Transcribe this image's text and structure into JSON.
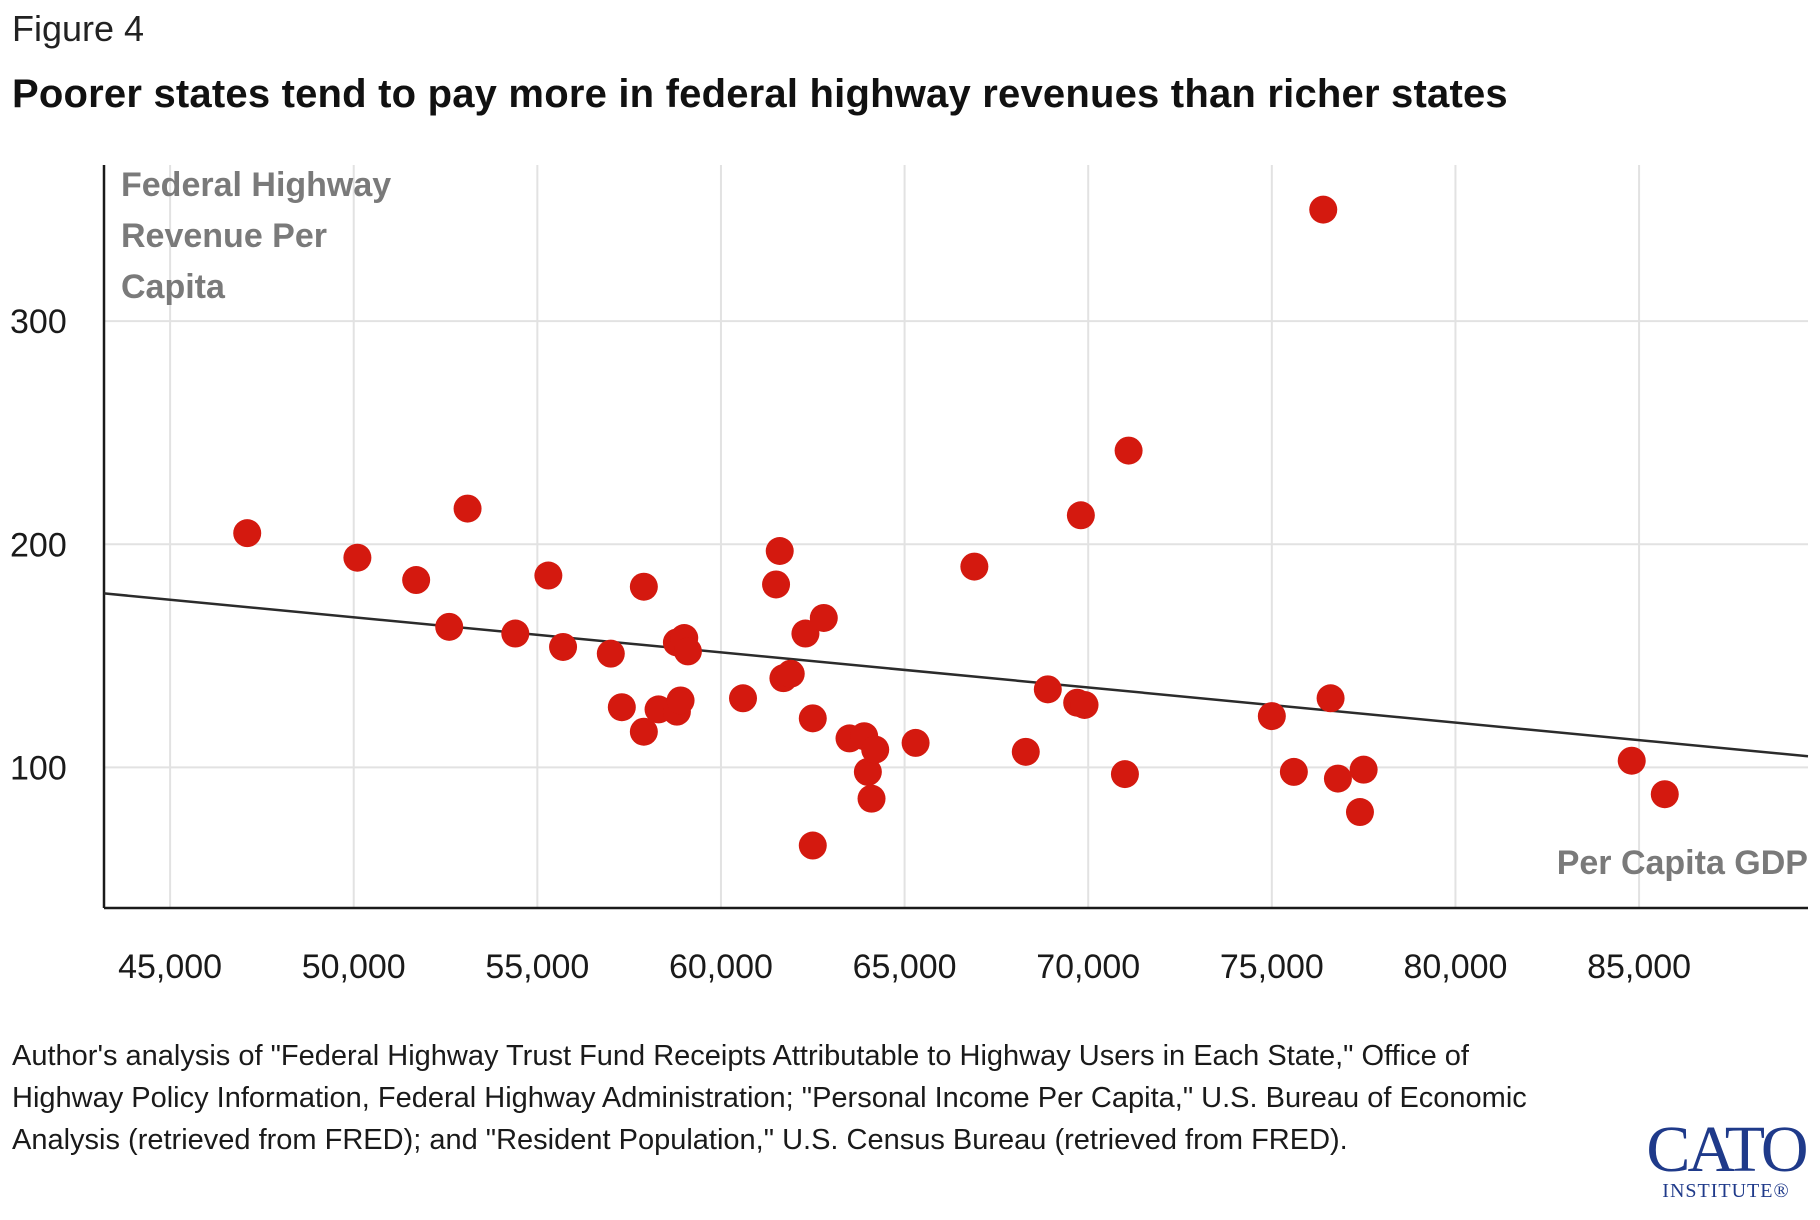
{
  "figure_label": "Figure 4",
  "title": "Poorer states tend to pay more in federal highway revenues than richer states",
  "source_note": "Author's analysis of \"Federal Highway Trust Fund Receipts Attributable to Highway Users in Each State,\" Office of Highway Policy Information, Federal Highway Administration; \"Personal Income Per Capita,\" U.S. Bureau of Economic Analysis (retrieved from FRED); and \"Resident Population,\" U.S. Census Bureau (retrieved from FRED).",
  "logo": {
    "main": "CATO",
    "sub": "INSTITUTE®"
  },
  "colors": {
    "point": "#d4190f",
    "trend": "#2b2b2b",
    "grid": "#e2e2e2",
    "axis": "#1a1a1a",
    "label": "#7a7a7a"
  },
  "chart_data": {
    "type": "scatter",
    "title": "Poorer states tend to pay more in federal highway revenues than richer states",
    "xlabel": "Per Capita GDP",
    "ylabel_lines": [
      "Federal Highway",
      "Revenue Per",
      "Capita"
    ],
    "xlim": [
      43200,
      89600
    ],
    "ylim": [
      37,
      370
    ],
    "xticks": [
      45000,
      50000,
      55000,
      60000,
      65000,
      70000,
      75000,
      80000,
      85000
    ],
    "xtick_labels": [
      "45,000",
      "50,000",
      "55,000",
      "60,000",
      "65,000",
      "70,000",
      "75,000",
      "80,000",
      "85,000"
    ],
    "yticks": [
      100,
      200,
      300
    ],
    "ytick_labels": [
      "100",
      "200",
      "300"
    ],
    "grid": true,
    "trendline": {
      "x": [
        43200,
        89600
      ],
      "y": [
        178,
        105
      ]
    },
    "points": [
      {
        "x": 47100,
        "y": 205
      },
      {
        "x": 50100,
        "y": 194
      },
      {
        "x": 51700,
        "y": 184
      },
      {
        "x": 52600,
        "y": 163
      },
      {
        "x": 53100,
        "y": 216
      },
      {
        "x": 54400,
        "y": 160
      },
      {
        "x": 55300,
        "y": 186
      },
      {
        "x": 55700,
        "y": 154
      },
      {
        "x": 57000,
        "y": 151
      },
      {
        "x": 57300,
        "y": 127
      },
      {
        "x": 57900,
        "y": 116
      },
      {
        "x": 57900,
        "y": 181
      },
      {
        "x": 58300,
        "y": 126
      },
      {
        "x": 58800,
        "y": 125
      },
      {
        "x": 58800,
        "y": 156
      },
      {
        "x": 58900,
        "y": 130
      },
      {
        "x": 59000,
        "y": 158
      },
      {
        "x": 59100,
        "y": 152
      },
      {
        "x": 60600,
        "y": 131
      },
      {
        "x": 61500,
        "y": 182
      },
      {
        "x": 61600,
        "y": 197
      },
      {
        "x": 61700,
        "y": 140
      },
      {
        "x": 61900,
        "y": 142
      },
      {
        "x": 62300,
        "y": 160
      },
      {
        "x": 62500,
        "y": 65
      },
      {
        "x": 62500,
        "y": 122
      },
      {
        "x": 62800,
        "y": 167
      },
      {
        "x": 63500,
        "y": 113
      },
      {
        "x": 63900,
        "y": 114
      },
      {
        "x": 64000,
        "y": 98
      },
      {
        "x": 64100,
        "y": 86
      },
      {
        "x": 64200,
        "y": 108
      },
      {
        "x": 65300,
        "y": 111
      },
      {
        "x": 66900,
        "y": 190
      },
      {
        "x": 68300,
        "y": 107
      },
      {
        "x": 68900,
        "y": 135
      },
      {
        "x": 69700,
        "y": 129
      },
      {
        "x": 69800,
        "y": 213
      },
      {
        "x": 69900,
        "y": 128
      },
      {
        "x": 71000,
        "y": 97
      },
      {
        "x": 71100,
        "y": 242
      },
      {
        "x": 75000,
        "y": 123
      },
      {
        "x": 75600,
        "y": 98
      },
      {
        "x": 76400,
        "y": 350
      },
      {
        "x": 76600,
        "y": 131
      },
      {
        "x": 76800,
        "y": 95
      },
      {
        "x": 77400,
        "y": 80
      },
      {
        "x": 77500,
        "y": 99
      },
      {
        "x": 84800,
        "y": 103
      },
      {
        "x": 85700,
        "y": 88
      }
    ]
  }
}
